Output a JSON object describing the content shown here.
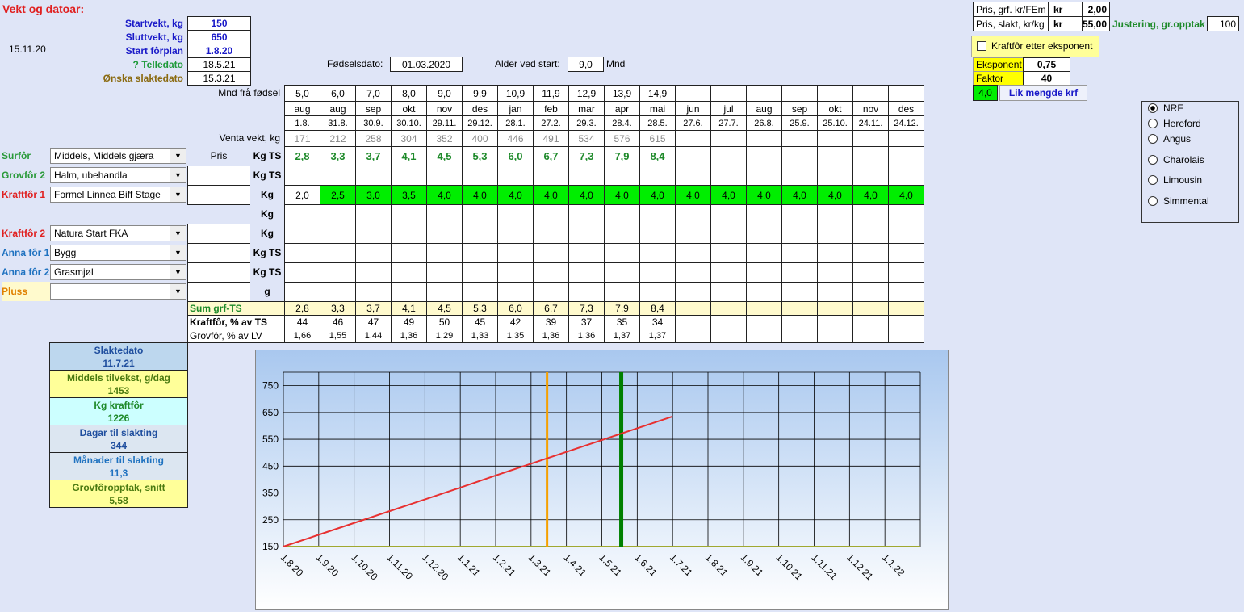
{
  "title": "Vekt og datoar:",
  "date": "15.11.20",
  "inputs": [
    {
      "label": "Startvekt, kg",
      "value": "150"
    },
    {
      "label": "Sluttvekt, kg",
      "value": "650"
    },
    {
      "label": "Start fôrplan",
      "value": "1.8.20"
    },
    {
      "label": "? Telledato",
      "value": "18.5.21"
    },
    {
      "label": "Ønska slaktedato",
      "value": "15.3.21"
    }
  ],
  "birth": {
    "label": "Fødselsdato:",
    "value": "01.03.2020"
  },
  "age": {
    "label": "Alder ved start:",
    "value": "9,0",
    "unit": "Mnd"
  },
  "prices": [
    {
      "label": "Pris, grf. kr/FEm",
      "unit": "kr",
      "value": "2,00"
    },
    {
      "label": "Pris, slakt, kr/kg",
      "unit": "kr",
      "value": "55,00"
    }
  ],
  "adjust": {
    "label": "Justering, gr.opptak",
    "value": "100"
  },
  "exponent": {
    "checkbox": "Kraftfôr etter eksponent",
    "eksponent_label": "Eksponent",
    "eksponent": "0,75",
    "faktor_label": "Faktor",
    "faktor": "40",
    "amount": "4,0",
    "button": "Lik mengde krf"
  },
  "breeds": {
    "options": [
      "NRF",
      "Hereford",
      "Angus",
      "Charolais",
      "Limousin",
      "Simmental"
    ],
    "selected": 0
  },
  "grid": {
    "months_label": "Mnd frå fødsel",
    "months_from_birth": [
      "5,0",
      "6,0",
      "7,0",
      "8,0",
      "9,0",
      "9,9",
      "10,9",
      "11,9",
      "12,9",
      "13,9",
      "14,9"
    ],
    "months": [
      "aug",
      "aug",
      "sep",
      "okt",
      "nov",
      "des",
      "jan",
      "feb",
      "mar",
      "apr",
      "mai",
      "jun",
      "jul",
      "aug",
      "sep",
      "okt",
      "nov",
      "des"
    ],
    "dates": [
      "1.8.",
      "31.8.",
      "30.9.",
      "30.10.",
      "29.11.",
      "29.12.",
      "28.1.",
      "27.2.",
      "29.3.",
      "28.4.",
      "28.5.",
      "27.6.",
      "27.7.",
      "26.8.",
      "25.9.",
      "25.10.",
      "24.11.",
      "24.12."
    ],
    "weight_label": "Venta vekt, kg",
    "expected_weight": [
      "171",
      "212",
      "258",
      "304",
      "352",
      "400",
      "446",
      "491",
      "534",
      "576",
      "615"
    ],
    "price_header": "Pris"
  },
  "feeds": [
    {
      "label": "Surfôr",
      "select": "Middels, Middels gjæra",
      "unit": "Kg TS",
      "values": [
        "2,8",
        "3,3",
        "3,7",
        "4,1",
        "4,5",
        "5,3",
        "6,0",
        "6,7",
        "7,3",
        "7,9",
        "8,4"
      ]
    },
    {
      "label": "Grovfôr 2",
      "select": "Halm, ubehandla",
      "unit": "Kg TS"
    },
    {
      "label": "Kraftfôr 1",
      "select": "Formel Linnea Biff Stage",
      "unit": "Kg",
      "values": [
        "2,0",
        "2,5",
        "3,0",
        "3,5",
        "4,0",
        "4,0",
        "4,0",
        "4,0",
        "4,0",
        "4,0",
        "4,0",
        "4,0",
        "4,0",
        "4,0",
        "4,0",
        "4,0",
        "4,0",
        "4,0"
      ]
    },
    {
      "unit": "Kg"
    },
    {
      "label": "Kraftfôr 2",
      "select": "Natura Start FKA",
      "unit": "Kg"
    },
    {
      "label": "Anna fôr 1",
      "select": "Bygg",
      "unit": "Kg TS"
    },
    {
      "label": "Anna fôr 2",
      "select": "Grasmjøl",
      "unit": "Kg TS"
    },
    {
      "label": "Pluss",
      "unit": "g"
    }
  ],
  "summary_rows": [
    {
      "label": "Sum grf-TS",
      "values": [
        "2,8",
        "3,3",
        "3,7",
        "4,1",
        "4,5",
        "5,3",
        "6,0",
        "6,7",
        "7,3",
        "7,9",
        "8,4"
      ]
    },
    {
      "label": "Kraftfôr, % av TS",
      "values": [
        "44",
        "46",
        "47",
        "49",
        "50",
        "45",
        "42",
        "39",
        "37",
        "35",
        "34"
      ]
    },
    {
      "label": "Grovfôr, % av LV",
      "values": [
        "1,66",
        "1,55",
        "1,44",
        "1,36",
        "1,29",
        "1,33",
        "1,35",
        "1,36",
        "1,36",
        "1,37",
        "1,37"
      ]
    }
  ],
  "results": [
    {
      "label": "Slaktedato",
      "value": "11.7.21"
    },
    {
      "label": "Middels tilvekst, g/dag",
      "value": "1453"
    },
    {
      "label": "Kg kraftfôr",
      "value": "1226"
    },
    {
      "label": "Dagar til slakting",
      "value": "344"
    },
    {
      "label": "Månader til slakting",
      "value": "11,3"
    },
    {
      "label": "Grovfôropptak, snitt",
      "value": "5,58"
    }
  ],
  "chart_data": {
    "type": "line",
    "categories": [
      "1.8.20",
      "1.9.20",
      "1.10.20",
      "1.11.20",
      "1.12.20",
      "1.1.21",
      "1.2.21",
      "1.3.21",
      "1.4.21",
      "1.5.21",
      "1.6.21",
      "1.7.21",
      "1.8.21",
      "1.9.21",
      "1.10.21",
      "1.11.21",
      "1.12.21",
      "1.1.22"
    ],
    "series": [
      {
        "color": "#e83030",
        "values": [
          150,
          194,
          238,
          282,
          326,
          370,
          415,
          459,
          503,
          547,
          591,
          635,
          null,
          null,
          null,
          null,
          null,
          null
        ]
      }
    ],
    "ylim": [
      150,
      800
    ],
    "yticks": [
      150,
      250,
      350,
      450,
      550,
      650,
      750
    ],
    "grid": true,
    "marker_colors": [
      "#f5a000",
      "#008000"
    ]
  }
}
